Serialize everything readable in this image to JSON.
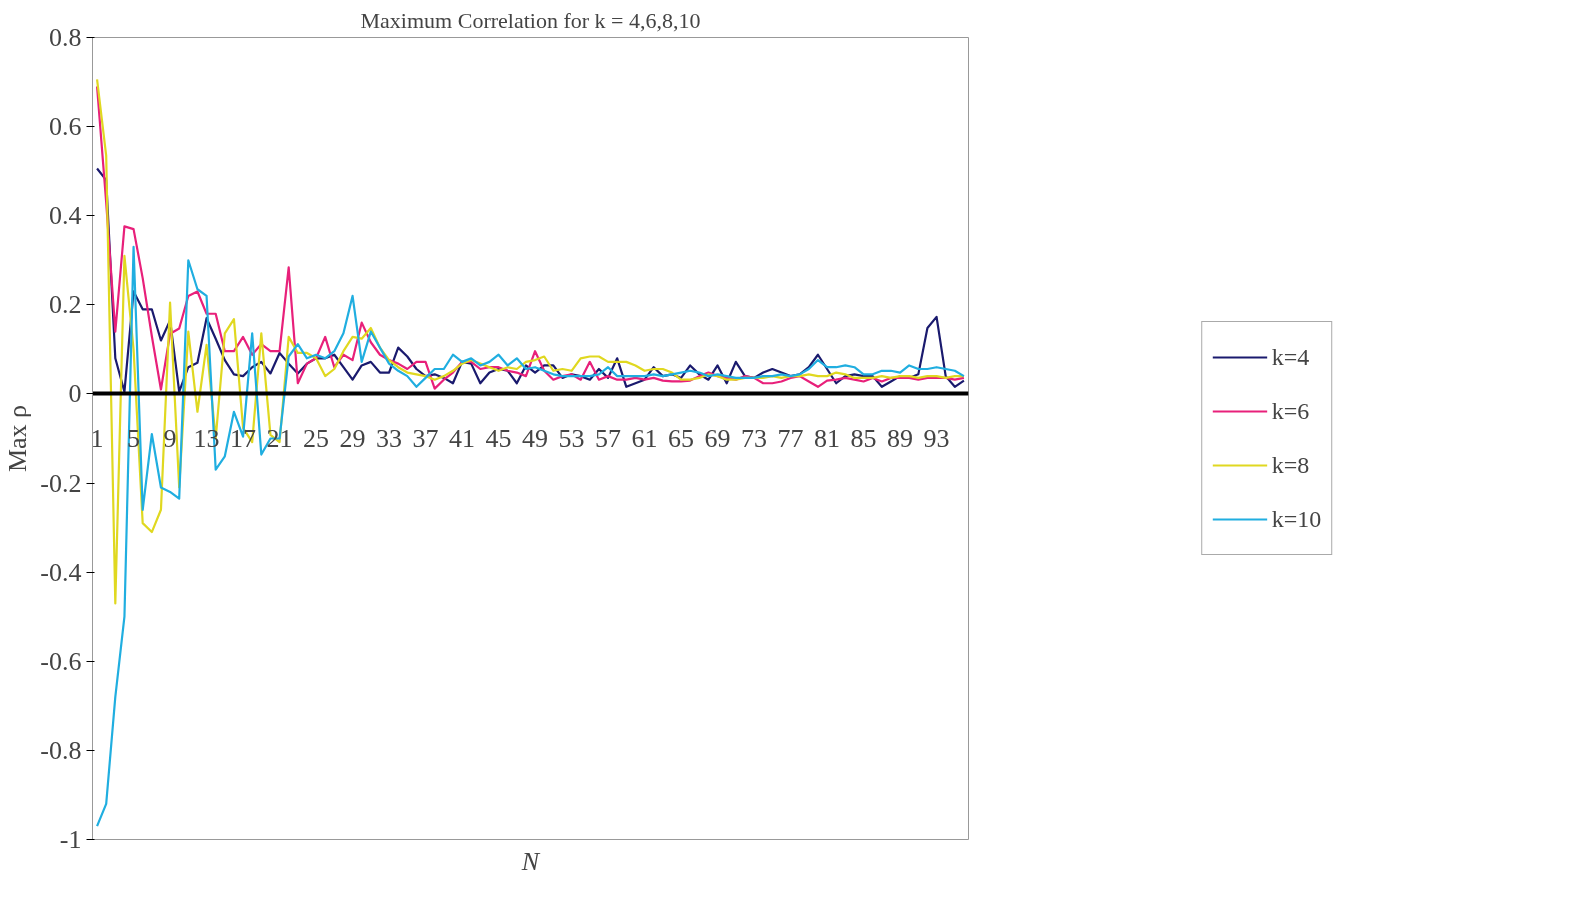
{
  "chart_data": {
    "type": "line",
    "title": "Maximum Correlation for k = 4,6,8,10",
    "xlabel": "N",
    "ylabel": "Max ρ",
    "x": [
      1,
      2,
      3,
      4,
      5,
      6,
      7,
      8,
      9,
      10,
      11,
      12,
      13,
      14,
      15,
      16,
      17,
      18,
      19,
      20,
      21,
      22,
      23,
      24,
      25,
      26,
      27,
      28,
      29,
      30,
      31,
      32,
      33,
      34,
      35,
      36,
      37,
      38,
      39,
      40,
      41,
      42,
      43,
      44,
      45,
      46,
      47,
      48,
      49,
      50,
      51,
      52,
      53,
      54,
      55,
      56,
      57,
      58,
      59,
      60,
      61,
      62,
      63,
      64,
      65,
      66,
      67,
      68,
      69,
      70,
      71,
      72,
      73,
      74,
      75,
      76,
      77,
      78,
      79,
      80,
      81,
      82,
      83,
      84,
      85,
      86,
      87,
      88,
      89,
      90,
      91,
      92,
      93,
      94,
      95,
      96
    ],
    "series": [
      {
        "name": "k=4",
        "color": "#1a1a6e",
        "values": [
          0.506,
          0.48,
          0.08,
          0.005,
          0.23,
          0.19,
          0.19,
          0.12,
          0.165,
          0.005,
          0.06,
          0.07,
          0.17,
          0.124,
          0.076,
          0.044,
          0.04,
          0.06,
          0.072,
          0.046,
          0.092,
          0.068,
          0.046,
          0.068,
          0.08,
          0.08,
          0.088,
          0.06,
          0.032,
          0.064,
          0.072,
          0.048,
          0.048,
          0.104,
          0.084,
          0.056,
          0.04,
          0.044,
          0.036,
          0.024,
          0.072,
          0.068,
          0.024,
          0.048,
          0.056,
          0.052,
          0.024,
          0.064,
          0.048,
          0.064,
          0.064,
          0.036,
          0.044,
          0.04,
          0.032,
          0.056,
          0.036,
          0.08,
          0.016,
          0.024,
          0.032,
          0.06,
          0.04,
          0.044,
          0.036,
          0.064,
          0.044,
          0.032,
          0.064,
          0.024,
          0.072,
          0.04,
          0.036,
          0.048,
          0.056,
          0.048,
          0.04,
          0.044,
          0.06,
          0.088,
          0.056,
          0.024,
          0.04,
          0.044,
          0.04,
          0.04,
          0.016,
          0.028,
          0.04,
          0.036,
          0.044,
          0.148,
          0.173,
          0.04,
          0.016,
          0.03
        ]
      },
      {
        "name": "k=6",
        "color": "#e8207a",
        "values": [
          0.69,
          0.43,
          0.14,
          0.376,
          0.37,
          0.26,
          0.13,
          0.01,
          0.135,
          0.147,
          0.22,
          0.23,
          0.18,
          0.18,
          0.096,
          0.096,
          0.128,
          0.088,
          0.112,
          0.096,
          0.096,
          0.284,
          0.024,
          0.068,
          0.08,
          0.128,
          0.06,
          0.088,
          0.076,
          0.16,
          0.116,
          0.088,
          0.076,
          0.068,
          0.056,
          0.072,
          0.072,
          0.012,
          0.032,
          0.048,
          0.072,
          0.072,
          0.056,
          0.06,
          0.06,
          0.052,
          0.048,
          0.04,
          0.096,
          0.052,
          0.032,
          0.04,
          0.044,
          0.032,
          0.072,
          0.032,
          0.04,
          0.032,
          0.032,
          0.036,
          0.032,
          0.036,
          0.03,
          0.028,
          0.028,
          0.03,
          0.04,
          0.048,
          0.04,
          0.036,
          0.032,
          0.04,
          0.036,
          0.024,
          0.024,
          0.028,
          0.036,
          0.04,
          0.028,
          0.016,
          0.03,
          0.032,
          0.036,
          0.032,
          0.028,
          0.036,
          0.028,
          0.036,
          0.036,
          0.036,
          0.032,
          0.036,
          0.036,
          0.036,
          0.032,
          0.036
        ]
      },
      {
        "name": "k=8",
        "color": "#e0d820",
        "values": [
          0.706,
          0.535,
          -0.47,
          0.31,
          0.1,
          -0.29,
          -0.31,
          -0.26,
          0.205,
          -0.21,
          0.14,
          -0.04,
          0.11,
          -0.1,
          0.136,
          0.168,
          -0.076,
          -0.108,
          0.136,
          -0.092,
          -0.108,
          0.128,
          0.092,
          0.092,
          0.08,
          0.04,
          0.056,
          0.096,
          0.128,
          0.124,
          0.148,
          0.104,
          0.076,
          0.06,
          0.048,
          0.044,
          0.04,
          0.032,
          0.04,
          0.052,
          0.068,
          0.076,
          0.068,
          0.06,
          0.052,
          0.06,
          0.056,
          0.072,
          0.076,
          0.084,
          0.052,
          0.056,
          0.052,
          0.08,
          0.084,
          0.084,
          0.072,
          0.072,
          0.072,
          0.064,
          0.052,
          0.056,
          0.056,
          0.048,
          0.032,
          0.032,
          0.036,
          0.044,
          0.04,
          0.032,
          0.032,
          0.036,
          0.036,
          0.036,
          0.04,
          0.036,
          0.04,
          0.04,
          0.044,
          0.04,
          0.04,
          0.048,
          0.044,
          0.036,
          0.036,
          0.036,
          0.04,
          0.036,
          0.04,
          0.04,
          0.036,
          0.04,
          0.04,
          0.036,
          0.04,
          0.04
        ]
      },
      {
        "name": "k=10",
        "color": "#20aee0",
        "values": [
          -0.97,
          -0.92,
          -0.68,
          -0.5,
          0.33,
          -0.26,
          -0.09,
          -0.21,
          -0.22,
          -0.235,
          0.3,
          0.235,
          0.22,
          -0.17,
          -0.14,
          -0.04,
          -0.096,
          0.136,
          -0.136,
          -0.1,
          -0.1,
          0.084,
          0.112,
          0.08,
          0.088,
          0.08,
          0.096,
          0.136,
          0.22,
          0.072,
          0.14,
          0.104,
          0.068,
          0.052,
          0.04,
          0.016,
          0.036,
          0.056,
          0.056,
          0.088,
          0.072,
          0.08,
          0.064,
          0.072,
          0.088,
          0.064,
          0.08,
          0.056,
          0.06,
          0.052,
          0.044,
          0.04,
          0.04,
          0.04,
          0.04,
          0.044,
          0.06,
          0.04,
          0.04,
          0.04,
          0.04,
          0.044,
          0.04,
          0.044,
          0.048,
          0.052,
          0.048,
          0.04,
          0.044,
          0.04,
          0.036,
          0.036,
          0.036,
          0.04,
          0.04,
          0.044,
          0.04,
          0.044,
          0.056,
          0.076,
          0.06,
          0.06,
          0.064,
          0.06,
          0.044,
          0.044,
          0.052,
          0.052,
          0.048,
          0.064,
          0.056,
          0.056,
          0.06,
          0.056,
          0.052,
          0.04
        ]
      }
    ],
    "xlim": [
      0.5,
      96.5
    ],
    "xticks": [
      1,
      5,
      9,
      13,
      17,
      21,
      25,
      29,
      33,
      37,
      41,
      45,
      49,
      53,
      57,
      61,
      65,
      69,
      73,
      77,
      81,
      85,
      89,
      93
    ],
    "ylim": [
      -1,
      0.8
    ],
    "yticks": [
      -1,
      -0.8,
      -0.6,
      -0.4,
      -0.2,
      0,
      0.2,
      0.4,
      0.6,
      0.8
    ],
    "grid": false,
    "legend": "right",
    "marker": "none",
    "line_style": "solid"
  }
}
